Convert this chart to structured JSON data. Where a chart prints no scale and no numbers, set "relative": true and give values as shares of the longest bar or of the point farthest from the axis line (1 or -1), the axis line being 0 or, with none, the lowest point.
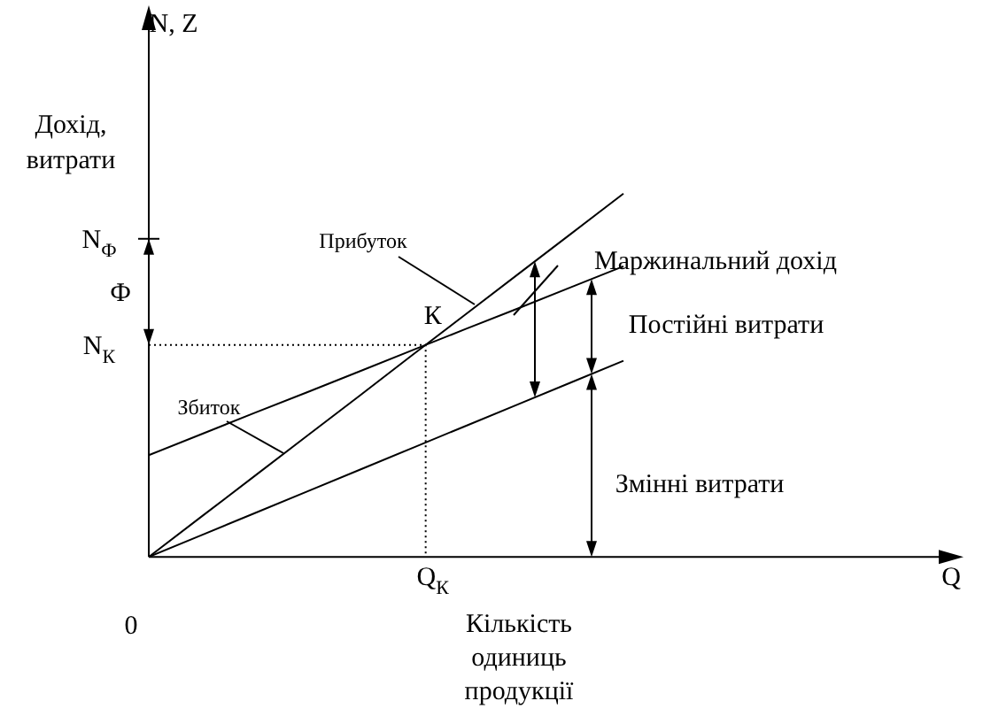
{
  "chart_data": {
    "type": "line",
    "relative": true,
    "ylabel": "Дохід, витрати",
    "categories": [
      null,
      null,
      null,
      null,
      null,
      null,
      null,
      null,
      null,
      null
    ],
    "series": [
      {
        "color": "#000000",
        "values": [
          0,
          0.111,
          0.222,
          0.333,
          0.444,
          0.556,
          0.667,
          0.778,
          0.889,
          1
        ]
      },
      {
        "color": "#000000",
        "values": [
          0.28,
          0.338,
          0.396,
          0.453,
          0.511,
          0.569,
          0.627,
          0.684,
          0.742,
          0.8
        ]
      },
      {
        "color": "#000000",
        "values": [
          0,
          0.06,
          0.12,
          0.18,
          0.24,
          0.3,
          0.36,
          0.42,
          0.48,
          0.54
        ]
      }
    ],
    "marker": "none",
    "grid": false,
    "legend": false,
    "annotations": [
      "N, Z",
      "0",
      "N$_{Ф}$",
      "Ф",
      "N$_{К}$",
      "К",
      "Q$_{К}$",
      "Кількість одиниць продукції",
      "Прибуток",
      "Збиток",
      "Маржинальний дохід",
      "Постійні витрати",
      "Змінні витрати",
      "Q"
    ]
  }
}
